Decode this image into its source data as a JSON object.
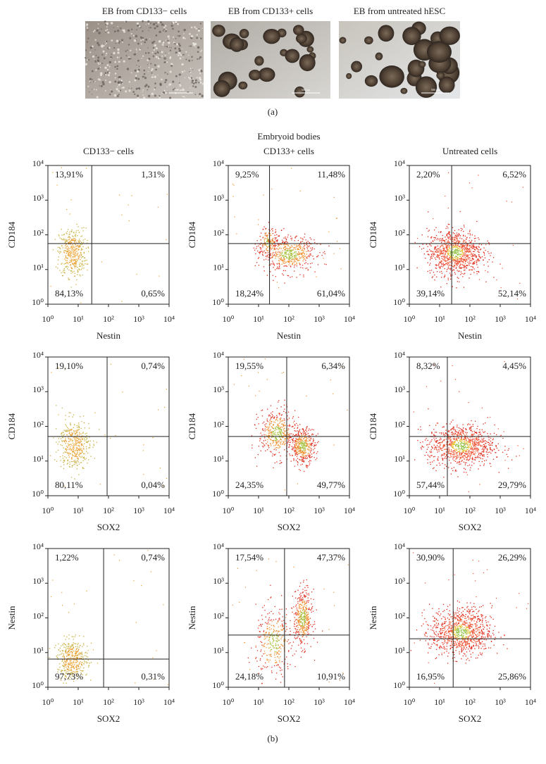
{
  "panel_a": {
    "images": [
      {
        "label": "EB from CD133− cells",
        "scale_bar": "500 μm"
      },
      {
        "label": "EB from CD133+ cells",
        "scale_bar": "500 μm"
      },
      {
        "label": "EB from untreated hESC",
        "scale_bar": "500 μm"
      }
    ],
    "caption": "(a)"
  },
  "panel_b": {
    "title": "Embryoid bodies",
    "column_titles": [
      "CD133− cells",
      "CD133+ cells",
      "Untreated cells"
    ],
    "caption": "(b)"
  },
  "chart_data": [
    {
      "type": "scatter",
      "xlabel": "Nestin",
      "ylabel": "CD184",
      "log_scale": true,
      "xlim": [
        1,
        10000
      ],
      "ylim": [
        1,
        10000
      ],
      "xticks": [
        {
          "value": 1,
          "label": "10⁰"
        },
        {
          "value": 10,
          "label": "10¹"
        },
        {
          "value": 100,
          "label": "10²"
        },
        {
          "value": 1000,
          "label": "10³"
        },
        {
          "value": 10000,
          "label": "10⁴"
        }
      ],
      "yticks": [
        {
          "value": 1,
          "label": "10⁰"
        },
        {
          "value": 10,
          "label": "10¹"
        },
        {
          "value": 100,
          "label": "10²"
        },
        {
          "value": 1000,
          "label": "10³"
        },
        {
          "value": 10000,
          "label": "10⁴"
        }
      ],
      "gate": {
        "x": 28,
        "y": 56
      },
      "quadrant_labels": {
        "upper_left": "13,91%",
        "upper_right": "1,31%",
        "lower_left": "84,13%",
        "lower_right": "0,65%"
      }
    },
    {
      "type": "scatter",
      "xlabel": "Nestin",
      "ylabel": "CD184",
      "log_scale": true,
      "xlim": [
        1,
        10000
      ],
      "ylim": [
        1,
        10000
      ],
      "xticks": [
        {
          "value": 1,
          "label": "10⁰"
        },
        {
          "value": 10,
          "label": "10¹"
        },
        {
          "value": 100,
          "label": "10²"
        },
        {
          "value": 1000,
          "label": "10³"
        },
        {
          "value": 10000,
          "label": "10⁴"
        }
      ],
      "yticks": [
        {
          "value": 1,
          "label": "10⁰"
        },
        {
          "value": 10,
          "label": "10¹"
        },
        {
          "value": 100,
          "label": "10²"
        },
        {
          "value": 1000,
          "label": "10³"
        },
        {
          "value": 10000,
          "label": "10⁴"
        }
      ],
      "gate": {
        "x": 23,
        "y": 56
      },
      "quadrant_labels": {
        "upper_left": "9,25%",
        "upper_right": "11,48%",
        "lower_left": "18,24%",
        "lower_right": "61,04%"
      }
    },
    {
      "type": "scatter",
      "xlabel": "Nestin",
      "ylabel": "CD184",
      "log_scale": true,
      "xlim": [
        1,
        10000
      ],
      "ylim": [
        1,
        10000
      ],
      "xticks": [
        {
          "value": 1,
          "label": "10⁰"
        },
        {
          "value": 10,
          "label": "10¹"
        },
        {
          "value": 100,
          "label": "10²"
        },
        {
          "value": 1000,
          "label": "10³"
        },
        {
          "value": 10000,
          "label": "10⁴"
        }
      ],
      "yticks": [
        {
          "value": 1,
          "label": "10⁰"
        },
        {
          "value": 10,
          "label": "10¹"
        },
        {
          "value": 100,
          "label": "10²"
        },
        {
          "value": 1000,
          "label": "10³"
        },
        {
          "value": 10000,
          "label": "10⁴"
        }
      ],
      "gate": {
        "x": 25,
        "y": 56
      },
      "quadrant_labels": {
        "upper_left": "2,20%",
        "upper_right": "6,52%",
        "lower_left": "39,14%",
        "lower_right": "52,14%"
      }
    },
    {
      "type": "scatter",
      "xlabel": "SOX2",
      "ylabel": "CD184",
      "log_scale": true,
      "xlim": [
        1,
        10000
      ],
      "ylim": [
        1,
        10000
      ],
      "xticks": [
        {
          "value": 1,
          "label": "10⁰"
        },
        {
          "value": 10,
          "label": "10¹"
        },
        {
          "value": 100,
          "label": "10²"
        },
        {
          "value": 1000,
          "label": "10³"
        },
        {
          "value": 10000,
          "label": "10⁴"
        }
      ],
      "yticks": [
        {
          "value": 1,
          "label": "10⁰"
        },
        {
          "value": 10,
          "label": "10¹"
        },
        {
          "value": 100,
          "label": "10²"
        },
        {
          "value": 1000,
          "label": "10³"
        },
        {
          "value": 10000,
          "label": "10⁴"
        }
      ],
      "gate": {
        "x": 90,
        "y": 51
      },
      "quadrant_labels": {
        "upper_left": "19,10%",
        "upper_right": "0,74%",
        "lower_left": "80,11%",
        "lower_right": "0,04%"
      }
    },
    {
      "type": "scatter",
      "xlabel": "SOX2",
      "ylabel": "CD184",
      "log_scale": true,
      "xlim": [
        1,
        10000
      ],
      "ylim": [
        1,
        10000
      ],
      "xticks": [
        {
          "value": 1,
          "label": "10⁰"
        },
        {
          "value": 10,
          "label": "10¹"
        },
        {
          "value": 100,
          "label": "10²"
        },
        {
          "value": 1000,
          "label": "10³"
        },
        {
          "value": 10000,
          "label": "10⁴"
        }
      ],
      "yticks": [
        {
          "value": 1,
          "label": "10⁰"
        },
        {
          "value": 10,
          "label": "10¹"
        },
        {
          "value": 100,
          "label": "10²"
        },
        {
          "value": 1000,
          "label": "10³"
        },
        {
          "value": 10000,
          "label": "10⁴"
        }
      ],
      "gate": {
        "x": 85,
        "y": 51
      },
      "quadrant_labels": {
        "upper_left": "19,55%",
        "upper_right": "6,34%",
        "lower_left": "24,35%",
        "lower_right": "49,77%"
      }
    },
    {
      "type": "scatter",
      "xlabel": "SOX2",
      "ylabel": "CD184",
      "log_scale": true,
      "xlim": [
        1,
        10000
      ],
      "ylim": [
        1,
        10000
      ],
      "xticks": [
        {
          "value": 1,
          "label": "10⁰"
        },
        {
          "value": 10,
          "label": "10¹"
        },
        {
          "value": 100,
          "label": "10²"
        },
        {
          "value": 1000,
          "label": "10³"
        },
        {
          "value": 10000,
          "label": "10⁴"
        }
      ],
      "yticks": [
        {
          "value": 1,
          "label": "10⁰"
        },
        {
          "value": 10,
          "label": "10¹"
        },
        {
          "value": 100,
          "label": "10²"
        },
        {
          "value": 1000,
          "label": "10³"
        },
        {
          "value": 10000,
          "label": "10⁴"
        }
      ],
      "gate": {
        "x": 18,
        "y": 51
      },
      "quadrant_labels": {
        "upper_left": "8,32%",
        "upper_right": "4,45%",
        "lower_left": "57,44%",
        "lower_right": "29,79%"
      }
    },
    {
      "type": "scatter",
      "xlabel": "SOX2",
      "ylabel": "Nestin",
      "log_scale": true,
      "xlim": [
        1,
        10000
      ],
      "ylim": [
        1,
        10000
      ],
      "xticks": [
        {
          "value": 1,
          "label": "10⁰"
        },
        {
          "value": 10,
          "label": "10¹"
        },
        {
          "value": 100,
          "label": "10²"
        },
        {
          "value": 1000,
          "label": "10³"
        },
        {
          "value": 10000,
          "label": "10⁴"
        }
      ],
      "yticks": [
        {
          "value": 1,
          "label": "10⁰"
        },
        {
          "value": 10,
          "label": "10¹"
        },
        {
          "value": 100,
          "label": "10²"
        },
        {
          "value": 1000,
          "label": "10³"
        },
        {
          "value": 10000,
          "label": "10⁴"
        }
      ],
      "gate": {
        "x": 69,
        "y": 6.5
      },
      "quadrant_labels": {
        "upper_left": "1,22%",
        "upper_right": "0,74%",
        "lower_left": "97,73%",
        "lower_right": "0,31%"
      }
    },
    {
      "type": "scatter",
      "xlabel": "SOX2",
      "ylabel": "Nestin",
      "log_scale": true,
      "xlim": [
        1,
        10000
      ],
      "ylim": [
        1,
        10000
      ],
      "xticks": [
        {
          "value": 1,
          "label": "10⁰"
        },
        {
          "value": 10,
          "label": "10¹"
        },
        {
          "value": 100,
          "label": "10²"
        },
        {
          "value": 1000,
          "label": "10³"
        },
        {
          "value": 10000,
          "label": "10⁴"
        }
      ],
      "yticks": [
        {
          "value": 1,
          "label": "10⁰"
        },
        {
          "value": 10,
          "label": "10¹"
        },
        {
          "value": 100,
          "label": "10²"
        },
        {
          "value": 1000,
          "label": "10³"
        },
        {
          "value": 10000,
          "label": "10⁴"
        }
      ],
      "gate": {
        "x": 72,
        "y": 32
      },
      "quadrant_labels": {
        "upper_left": "17,54%",
        "upper_right": "47,37%",
        "lower_left": "24,18%",
        "lower_right": "10,91%"
      }
    },
    {
      "type": "scatter",
      "xlabel": "SOX2",
      "ylabel": "Nestin",
      "log_scale": true,
      "xlim": [
        1,
        10000
      ],
      "ylim": [
        1,
        10000
      ],
      "xticks": [
        {
          "value": 1,
          "label": "10⁰"
        },
        {
          "value": 10,
          "label": "10¹"
        },
        {
          "value": 100,
          "label": "10²"
        },
        {
          "value": 1000,
          "label": "10³"
        },
        {
          "value": 10000,
          "label": "10⁴"
        }
      ],
      "yticks": [
        {
          "value": 1,
          "label": "10⁰"
        },
        {
          "value": 10,
          "label": "10¹"
        },
        {
          "value": 100,
          "label": "10²"
        },
        {
          "value": 1000,
          "label": "10³"
        },
        {
          "value": 10000,
          "label": "10⁴"
        }
      ],
      "gate": {
        "x": 28,
        "y": 25
      },
      "quadrant_labels": {
        "upper_left": "30,90%",
        "upper_right": "26,29%",
        "lower_left": "16,95%",
        "lower_right": "25,86%"
      }
    }
  ]
}
